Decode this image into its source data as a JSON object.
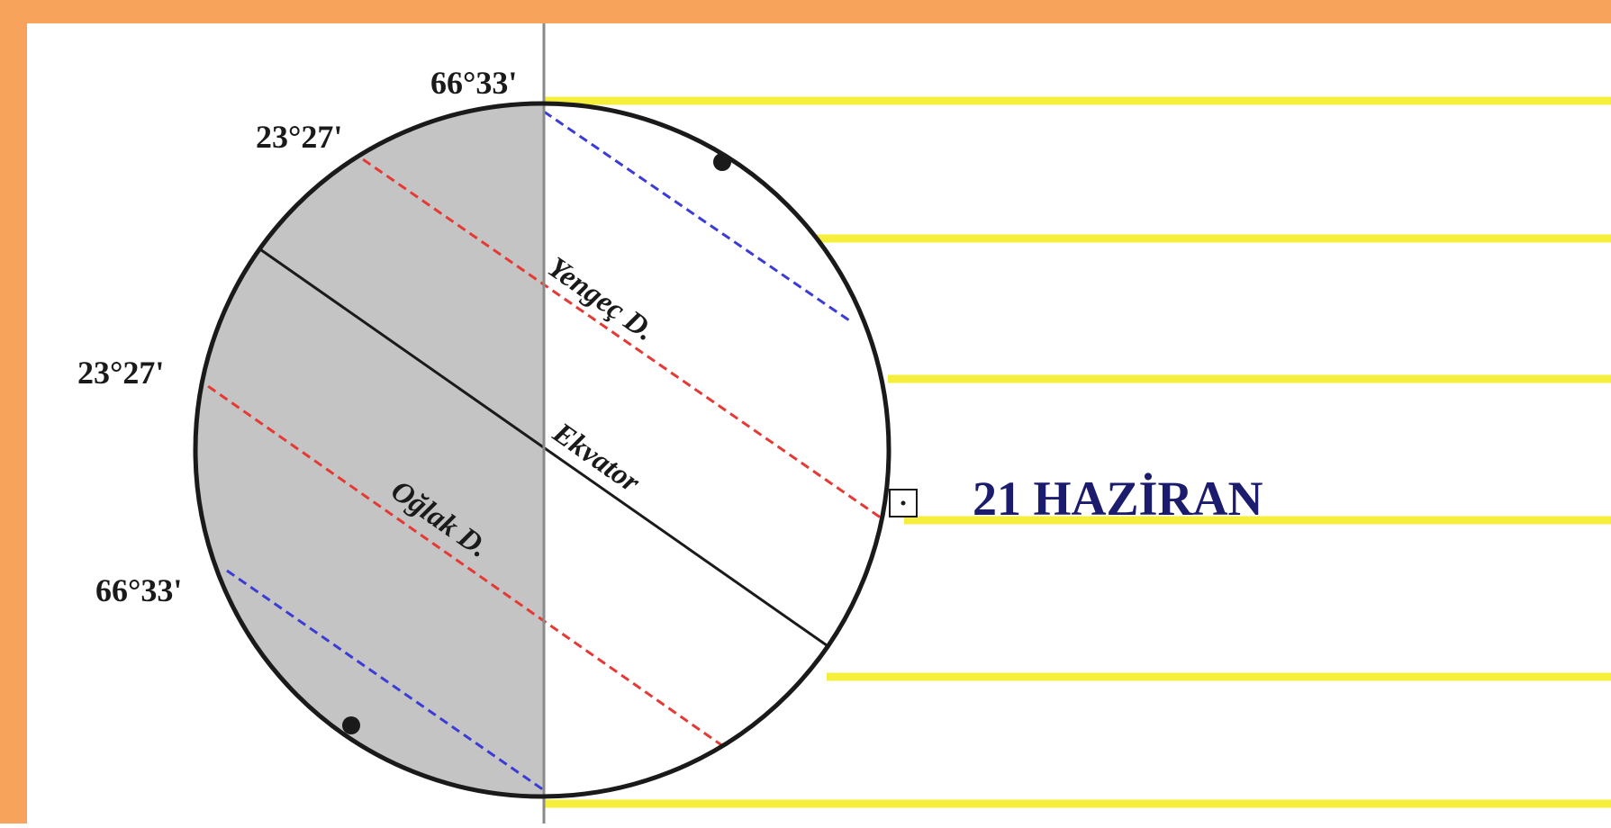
{
  "title": "21 HAZİRAN",
  "latitudes": {
    "north_polar": "66°33'",
    "north_tropic": "23°27'",
    "south_tropic": "23°27'",
    "south_polar": "66°33'"
  },
  "lines": {
    "cancer": "Yengeç D.",
    "equator": "Ekvator",
    "capricorn": "Oğlak D."
  },
  "colors": {
    "frame": "#f7a35c",
    "sun_rays": "#f5ee3a",
    "night": "#c4c4c4",
    "tropic_lines": "#e53935",
    "polar_lines": "#3b3bd6",
    "title": "#1c1c6e"
  }
}
